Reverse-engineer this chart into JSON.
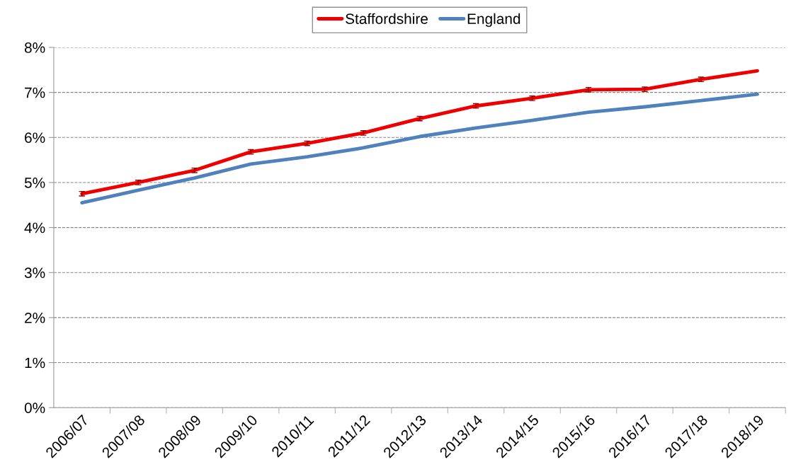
{
  "chart_data": {
    "type": "line",
    "categories": [
      "2006/07",
      "2007/08",
      "2008/09",
      "2009/10",
      "2010/11",
      "2011/12",
      "2012/13",
      "2013/14",
      "2014/15",
      "2015/16",
      "2016/17",
      "2017/18",
      "2018/19"
    ],
    "series": [
      {
        "name": "Staffordshire",
        "color": "#ee0000",
        "values": [
          4.75,
          5.0,
          5.27,
          5.68,
          5.87,
          6.1,
          6.42,
          6.7,
          6.87,
          7.06,
          7.07,
          7.29,
          7.48
        ],
        "errors": [
          0.05,
          0.05,
          0.05,
          0.05,
          0.05,
          0.05,
          0.05,
          0.05,
          0.05,
          0.05,
          0.05,
          0.05,
          null
        ]
      },
      {
        "name": "England",
        "color": "#4f81bd",
        "values": [
          4.55,
          4.83,
          5.1,
          5.41,
          5.57,
          5.77,
          6.02,
          6.21,
          6.38,
          6.56,
          6.68,
          6.82,
          6.96
        ]
      }
    ],
    "ylim": [
      0,
      8
    ],
    "yticks": [
      {
        "value": 0,
        "label": "0%"
      },
      {
        "value": 1,
        "label": "1%"
      },
      {
        "value": 2,
        "label": "2%"
      },
      {
        "value": 3,
        "label": "3%"
      },
      {
        "value": 4,
        "label": "4%"
      },
      {
        "value": 5,
        "label": "5%"
      },
      {
        "value": 6,
        "label": "6%"
      },
      {
        "value": 7,
        "label": "7%"
      },
      {
        "value": 8,
        "label": "8%"
      }
    ],
    "grid": "y",
    "legend": "top",
    "marker": "none",
    "line_style": "solid"
  }
}
